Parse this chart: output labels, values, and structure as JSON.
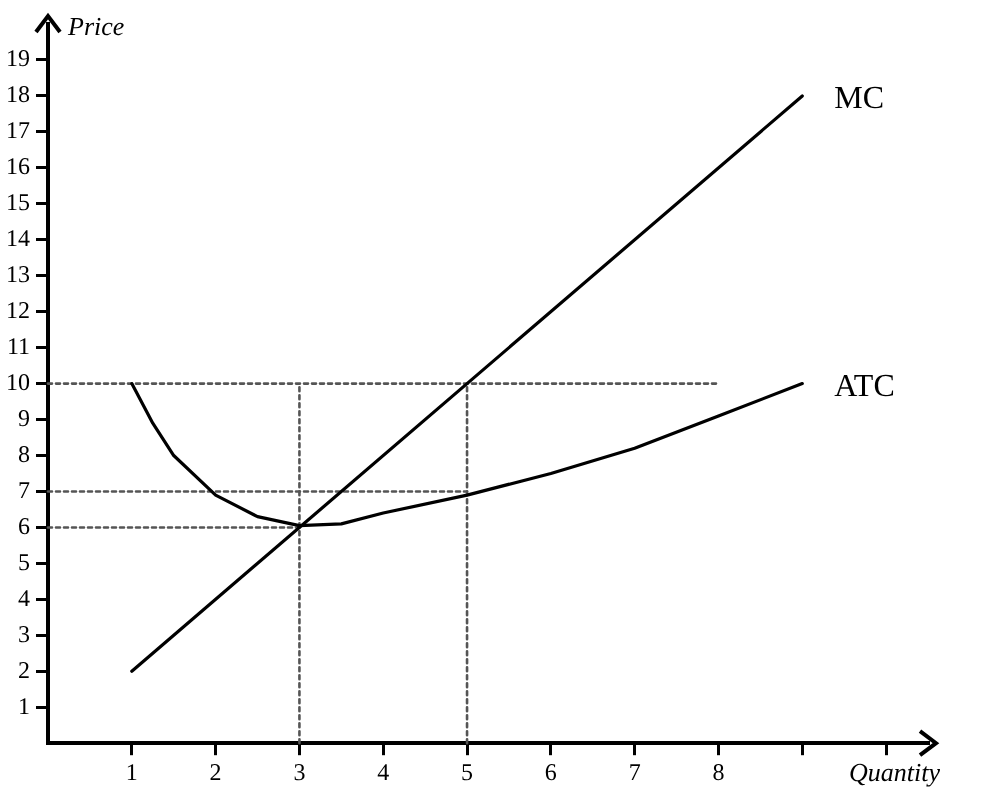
{
  "chart_data": {
    "type": "line",
    "xlabel": "Quantity",
    "ylabel": "Price",
    "xlim": [
      0,
      10.5
    ],
    "ylim": [
      0,
      20
    ],
    "xticks": [
      1,
      2,
      3,
      4,
      5,
      6,
      7,
      8,
      {
        "value": 9,
        "label": null
      },
      {
        "value": 10,
        "label": null
      }
    ],
    "yticks": [
      1,
      2,
      3,
      4,
      5,
      6,
      7,
      8,
      9,
      10,
      11,
      12,
      13,
      14,
      15,
      16,
      17,
      18,
      19
    ],
    "grid": false,
    "legend": false,
    "marker": "none",
    "line_style": "solid",
    "series": [
      {
        "name": "MC",
        "color": "#000000",
        "x": [
          1,
          9
        ],
        "values": [
          2,
          18
        ]
      },
      {
        "name": "ATC",
        "color": "#000000",
        "x": [
          1,
          1.25,
          1.5,
          2,
          2.5,
          3,
          3.5,
          4,
          5,
          6,
          7,
          8,
          9
        ],
        "values": [
          10,
          8.9,
          8,
          6.9,
          6.3,
          6.05,
          6.1,
          6.4,
          6.9,
          7.5,
          8.2,
          9.1,
          10
        ]
      },
      {
        "color": "#555555",
        "line_style": "dotted",
        "x": [
          0,
          8
        ],
        "values": [
          10,
          10
        ]
      },
      {
        "color": "#555555",
        "line_style": "dotted",
        "x": [
          0,
          5
        ],
        "values": [
          7,
          7
        ]
      },
      {
        "color": "#555555",
        "line_style": "dotted",
        "x": [
          0,
          3
        ],
        "values": [
          6,
          6
        ]
      },
      {
        "color": "#555555",
        "line_style": "dotted",
        "x": [
          3,
          3
        ],
        "values": [
          0,
          10
        ]
      },
      {
        "color": "#555555",
        "line_style": "dotted",
        "x": [
          5,
          5
        ],
        "values": [
          0,
          10
        ]
      }
    ]
  }
}
